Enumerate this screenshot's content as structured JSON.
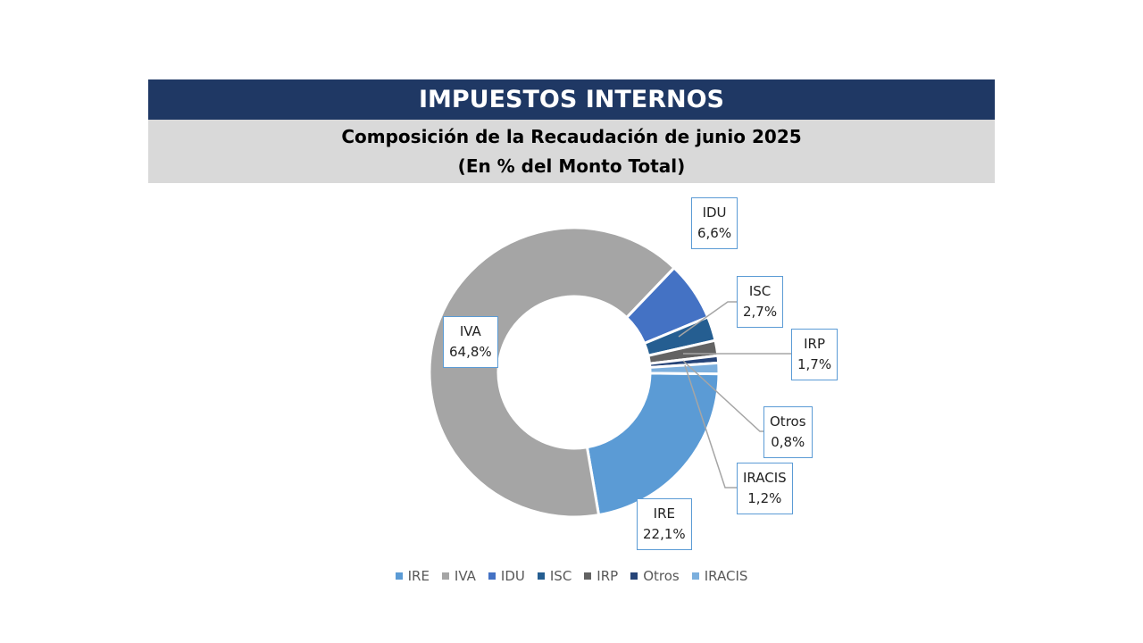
{
  "header": {
    "title": "IMPUESTOS INTERNOS",
    "subtitle": "Composición de la Recaudación de junio 2025",
    "subtitle2": "(En % del Monto Total)"
  },
  "chart_data": {
    "type": "pie",
    "variant": "donut",
    "title": "Composición de la Recaudación de junio 2025",
    "subtitle": "(En % del Monto Total)",
    "unit": "%",
    "categories": [
      "IRE",
      "IVA",
      "IDU",
      "ISC",
      "IRP",
      "Otros",
      "IRACIS"
    ],
    "values": [
      22.1,
      64.8,
      6.6,
      2.7,
      1.7,
      0.8,
      1.2
    ],
    "value_labels": [
      "22,1%",
      "64,8%",
      "6,6%",
      "2,7%",
      "1,7%",
      "0,8%",
      "1,2%"
    ],
    "colors": [
      "#5B9BD5",
      "#A5A5A5",
      "#4472C4",
      "#255E91",
      "#636363",
      "#264478",
      "#7CAFDD"
    ],
    "legend": "bottom"
  }
}
